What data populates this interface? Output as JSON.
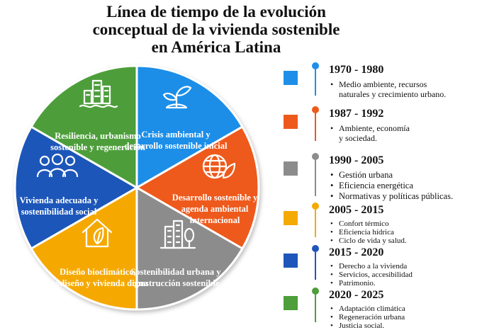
{
  "title": {
    "line1": "Línea de tiempo de la evolución",
    "line2": "conceptual de la vivienda sostenible",
    "line3": "en América Latina"
  },
  "wheel": {
    "segments": [
      {
        "label": "Crisis ambiental y desarrollo sostenible inicial",
        "color": "#1E8EE8",
        "icon": "plant-sprout-icon"
      },
      {
        "label": "Desarrollo sostenible y agenda ambiental internacional",
        "color": "#EE5A1B",
        "icon": "globe-leaf-icon"
      },
      {
        "label": "Sostenibilidad urbana y construcción sostenible",
        "color": "#8C8C8C",
        "icon": "buildings-tree-icon"
      },
      {
        "label": "Diseño bioclimático, ecodiseño y vivienda digna",
        "color": "#F5A905",
        "icon": "house-leaf-icon"
      },
      {
        "label": "Vivienda adecuada y sostenibilidad social",
        "color": "#1E56B9",
        "icon": "people-group-icon"
      },
      {
        "label": "Resiliencia, urbanismo sostenible y regeneración",
        "color": "#4E9E3B",
        "icon": "city-water-icon"
      }
    ]
  },
  "timeline": [
    {
      "period": "1970 - 1980",
      "color": "#1E8EE8",
      "items": [
        "Medio ambiente, recursos",
        "naturales y crecimiento urbano."
      ],
      "bullets": [
        true,
        false
      ]
    },
    {
      "period": "1987 - 1992",
      "color": "#EE5A1B",
      "items": [
        "Ambiente, economía",
        "y sociedad."
      ],
      "bullets": [
        true,
        false
      ]
    },
    {
      "period": "1990 - 2005",
      "color": "#8C8C8C",
      "items": [
        "Gestión urbana",
        "Eficiencia energética",
        "Normativas y políticas públicas."
      ],
      "bullets": [
        true,
        true,
        true
      ]
    },
    {
      "period": "2005 - 2015",
      "color": "#F5A905",
      "items": [
        "Confort térmico",
        "Eficiencia hídrica",
        "Ciclo de vida y salud."
      ],
      "bullets": [
        true,
        true,
        true
      ]
    },
    {
      "period": "2015 - 2020",
      "color": "#1E56B9",
      "items": [
        "Derecho a la vivienda",
        "Servicios, accesibilidad",
        "Patrimonio."
      ],
      "bullets": [
        true,
        true,
        true
      ]
    },
    {
      "period": "2020 - 2025",
      "color": "#4E9E3B",
      "items": [
        "Adaptación climática",
        "Regeneración urbana",
        "Justicia social."
      ],
      "bullets": [
        true,
        true,
        true
      ]
    }
  ]
}
